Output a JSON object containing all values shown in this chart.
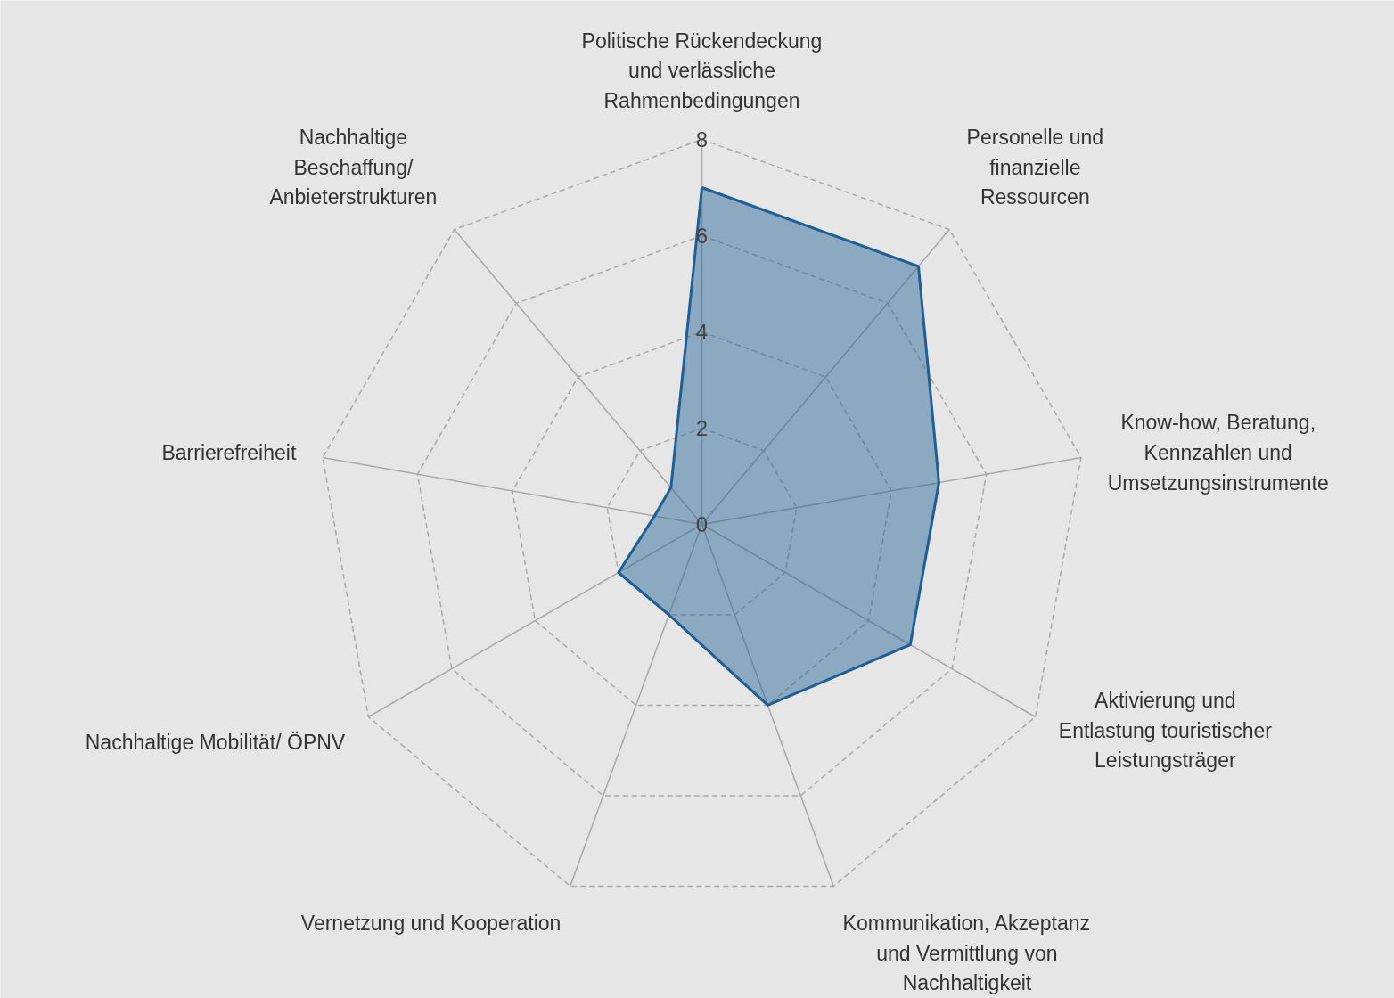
{
  "chart_data": {
    "type": "radar",
    "categories": [
      "Politische Rückendeckung\nund verlässliche\nRahmenbedingungen",
      "Personelle und\nfinanzielle\nRessourcen",
      "Know-how, Beratung,\nKennzahlen und\nUmsetzungsinstrumente",
      "Aktivierung und\nEntlastung touristischer\nLeistungsträger",
      "Kommunikation, Akzeptanz\nund Vermittlung von\nNachhaltigkeit",
      "Vernetzung und Kooperation",
      "Nachhaltige Mobilität/ ÖPNV",
      "Barrierefreiheit",
      "Nachhaltige\nBeschaffung/\nAnbieterstrukturen"
    ],
    "series": [
      {
        "color": "#1f5f96",
        "values": [
          7,
          7,
          5,
          5,
          4,
          2,
          2,
          1,
          1
        ]
      }
    ],
    "ylim": [
      0,
      8
    ],
    "yticks": [
      0,
      2,
      4,
      6,
      8
    ],
    "grid": true
  }
}
